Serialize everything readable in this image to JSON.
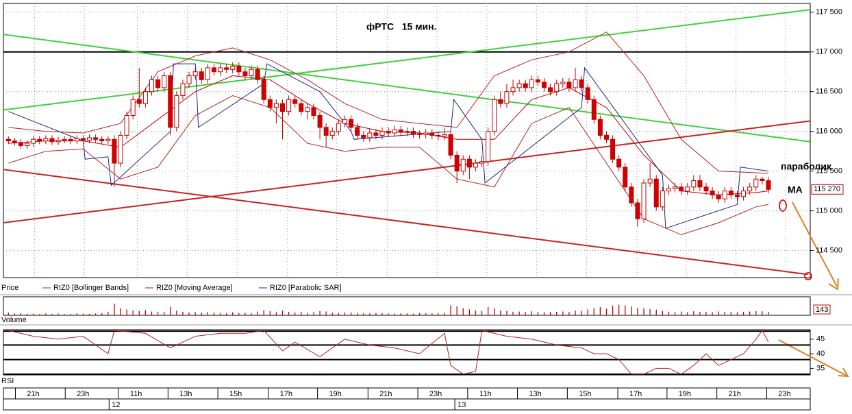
{
  "chart_data": {
    "type": "candlestick",
    "title": "фРТС   15 мин.",
    "annotations": [
      "параболик",
      "MA"
    ],
    "price_label": "Price",
    "xlim": [
      -0.8,
      128.6
    ],
    "ylim": [
      114160,
      117610
    ],
    "yticks": [
      {
        "value": 114500,
        "label": "114 500"
      },
      {
        "value": 115000,
        "label": "115 000"
      },
      {
        "value": 115500,
        "label": "115 500"
      },
      {
        "value": 116000,
        "label": "116 000"
      },
      {
        "value": 116500,
        "label": "116 500"
      },
      {
        "value": 117000,
        "label": "117 000"
      },
      {
        "value": 117500,
        "label": "117 500"
      }
    ],
    "grid": true,
    "up_color": "#ffffff",
    "down_color": "#d40000",
    "wick_color": "#c00000",
    "open": [
      115900,
      115880,
      115860,
      115820,
      115850,
      115900,
      115880,
      115910,
      115870,
      115890,
      115900,
      115880,
      115910,
      115890,
      115920,
      115900,
      115880,
      115900,
      115600,
      115950,
      116200,
      116400,
      116350,
      116500,
      116650,
      116550,
      116700,
      116050,
      116450,
      116600,
      116700,
      116750,
      116650,
      116800,
      116750,
      116800,
      116780,
      116820,
      116750,
      116700,
      116780,
      116650,
      116400,
      116300,
      116350,
      116250,
      116400,
      116350,
      116250,
      116300,
      116200,
      116050,
      115950,
      116000,
      116100,
      116150,
      116050,
      115950,
      115920,
      115980,
      115950,
      116000,
      115980,
      116020,
      115990,
      116000,
      115970,
      115960,
      115980,
      115950,
      115940,
      115960,
      115700,
      115500,
      115650,
      115550,
      115600,
      115620,
      116000,
      116400,
      116350,
      116500,
      116550,
      116600,
      116550,
      116650,
      116620,
      116550,
      116500,
      116600,
      116620,
      116550,
      116650,
      116550,
      116400,
      116150,
      115950,
      115900,
      115650,
      115550,
      115300,
      115100,
      114900,
      115350,
      115400,
      115050,
      115250,
      115280,
      115300,
      115250,
      115300,
      115380,
      115300,
      115250,
      115200,
      115150,
      115250,
      115200,
      115180,
      115250,
      115300,
      115400,
      115380
    ],
    "high": [
      115940,
      115920,
      115900,
      115890,
      115940,
      115940,
      115950,
      115950,
      115930,
      115940,
      115940,
      115950,
      115950,
      115960,
      115960,
      115940,
      115940,
      115950,
      116000,
      116250,
      116450,
      116800,
      116550,
      116700,
      116700,
      116750,
      116750,
      116500,
      116650,
      116750,
      116800,
      116800,
      116850,
      116850,
      116850,
      116850,
      116870,
      116870,
      116800,
      116830,
      116830,
      116700,
      116450,
      116400,
      116400,
      116450,
      116450,
      116400,
      116350,
      116350,
      116250,
      116100,
      116050,
      116150,
      116200,
      116200,
      116100,
      116000,
      116030,
      116030,
      116050,
      116050,
      116070,
      116070,
      116050,
      116050,
      116010,
      116030,
      116030,
      116000,
      116050,
      116010,
      115750,
      115700,
      115700,
      115650,
      115700,
      116050,
      116450,
      116500,
      116600,
      116650,
      116650,
      116650,
      116700,
      116700,
      116670,
      116600,
      116650,
      116670,
      116670,
      116800,
      116700,
      116600,
      116450,
      116200,
      116000,
      115950,
      115700,
      115600,
      115350,
      115150,
      115400,
      115600,
      115450,
      115300,
      115330,
      115350,
      115350,
      115350,
      115450,
      115450,
      115350,
      115300,
      115250,
      115300,
      115300,
      115250,
      115300,
      115350,
      115450,
      115430,
      115430
    ],
    "low": [
      115840,
      115820,
      115780,
      115780,
      115810,
      115840,
      115840,
      115830,
      115830,
      115850,
      115840,
      115840,
      115850,
      115850,
      115860,
      115840,
      115840,
      115300,
      115550,
      115900,
      116150,
      116300,
      116300,
      116450,
      116500,
      116500,
      115950,
      116000,
      116400,
      116550,
      116650,
      116600,
      116600,
      116700,
      116700,
      116730,
      116730,
      116700,
      116650,
      116650,
      116600,
      116350,
      116250,
      116100,
      115900,
      116200,
      116300,
      116200,
      116150,
      116150,
      115900,
      115800,
      115900,
      115950,
      116050,
      116000,
      115900,
      115870,
      115870,
      115900,
      115900,
      115930,
      115930,
      115940,
      115940,
      115920,
      115910,
      115910,
      115900,
      115890,
      115890,
      115650,
      115350,
      115450,
      115400,
      115500,
      115550,
      115570,
      115950,
      116300,
      116300,
      116450,
      116500,
      116500,
      116500,
      116570,
      116500,
      116450,
      116450,
      116550,
      116500,
      116500,
      116500,
      116350,
      116100,
      115900,
      115850,
      115600,
      115500,
      115250,
      115050,
      114800,
      114850,
      115300,
      115000,
      115000,
      115200,
      115230,
      115200,
      115200,
      115250,
      115250,
      115200,
      115150,
      115100,
      115100,
      115150,
      115130,
      115130,
      115200,
      115250,
      115330,
      115220
    ],
    "close": [
      115880,
      115860,
      115820,
      115850,
      115900,
      115880,
      115910,
      115870,
      115890,
      115900,
      115880,
      115910,
      115890,
      115920,
      115900,
      115880,
      115900,
      115600,
      115950,
      116200,
      116400,
      116350,
      116500,
      116650,
      116550,
      116700,
      116050,
      116450,
      116600,
      116700,
      116750,
      116650,
      116800,
      116750,
      116800,
      116780,
      116820,
      116750,
      116700,
      116780,
      116650,
      116400,
      116300,
      116350,
      116250,
      116400,
      116350,
      116250,
      116300,
      116200,
      116050,
      115950,
      116000,
      116100,
      116150,
      116050,
      115950,
      115920,
      115980,
      115950,
      116000,
      115980,
      116020,
      115990,
      116000,
      115970,
      115960,
      115980,
      115950,
      115940,
      115960,
      115700,
      115500,
      115650,
      115550,
      115600,
      115620,
      116000,
      116400,
      116350,
      116500,
      116550,
      116600,
      116550,
      116650,
      116620,
      116550,
      116500,
      116600,
      116620,
      116550,
      116650,
      116550,
      116400,
      116150,
      115950,
      115900,
      115650,
      115550,
      115300,
      115100,
      114900,
      115350,
      115400,
      115050,
      115250,
      115280,
      115300,
      115250,
      115300,
      115380,
      115300,
      115250,
      115200,
      115150,
      115250,
      115200,
      115180,
      115250,
      115300,
      115400,
      115380,
      115270
    ],
    "last_label": "115 270",
    "bands": {
      "name": "RIZ0 [Bollinger Bands]",
      "color": "#b52020",
      "x": [
        0,
        6,
        12,
        18,
        24,
        30,
        36,
        42,
        48,
        54,
        60,
        66,
        72,
        78,
        84,
        90,
        96,
        102,
        108,
        114,
        120,
        122
      ],
      "upper": [
        116050,
        116000,
        115980,
        116100,
        116750,
        116950,
        117050,
        116900,
        116650,
        116350,
        116150,
        116100,
        116050,
        116700,
        116900,
        117000,
        117250,
        116700,
        115900,
        115500,
        115480,
        115470
      ],
      "lower": [
        115600,
        115750,
        115780,
        115400,
        115550,
        116200,
        116450,
        116300,
        115850,
        115750,
        115800,
        115800,
        115400,
        115300,
        116100,
        116300,
        115600,
        114900,
        114700,
        114850,
        115050,
        115080
      ]
    },
    "ma": {
      "name": "RIZ0 [Moving Average]",
      "color": "#c00000",
      "x": [
        0,
        6,
        12,
        18,
        24,
        30,
        36,
        42,
        48,
        54,
        60,
        66,
        72,
        78,
        84,
        90,
        96,
        102,
        108,
        114,
        120,
        122
      ],
      "values": [
        115850,
        115880,
        115880,
        115800,
        116150,
        116500,
        116700,
        116650,
        116350,
        116100,
        116000,
        115980,
        115900,
        115900,
        116400,
        116550,
        116300,
        115700,
        115250,
        115200,
        115230,
        115250
      ]
    },
    "sar": {
      "name": "RIZ0 [Parabolic SAR]",
      "color": "#20208f",
      "x": [
        0,
        12,
        12.3,
        16,
        16.5,
        26,
        26.5,
        30,
        30.5,
        41,
        41.5,
        50,
        55,
        55.5,
        71,
        71.5,
        76,
        76.5,
        92,
        92.5,
        105,
        105.5,
        117,
        117.5,
        122
      ],
      "values": [
        116250,
        115880,
        115650,
        115680,
        115320,
        116000,
        116850,
        116850,
        116050,
        116600,
        116850,
        116500,
        116000,
        115900,
        116000,
        116400,
        115900,
        115350,
        116300,
        116800,
        115450,
        114780,
        115080,
        115550,
        115500
      ]
    },
    "trendlines": [
      {
        "color": "#000000",
        "x": [
          -0.8,
          128.6
        ],
        "values": [
          117000,
          117000
        ]
      },
      {
        "color": "#3fd13f",
        "x": [
          -0.8,
          128.6
        ],
        "values": [
          116270,
          117530
        ]
      },
      {
        "color": "#3fd13f",
        "x": [
          -0.8,
          128.6
        ],
        "values": [
          117220,
          115870
        ]
      },
      {
        "color": "#cc2020",
        "x": [
          -0.8,
          128.6
        ],
        "values": [
          114850,
          116130
        ]
      },
      {
        "color": "#cc2020",
        "x": [
          -0.8,
          128.3
        ],
        "values": [
          115520,
          114200
        ]
      }
    ],
    "volume": {
      "label": "Volume",
      "color": "#c00000",
      "ylim": [
        0,
        700
      ],
      "values": [
        120,
        80,
        90,
        60,
        70,
        50,
        80,
        60,
        70,
        50,
        60,
        90,
        70,
        60,
        80,
        100,
        150,
        500,
        300,
        250,
        200,
        180,
        220,
        160,
        150,
        140,
        350,
        200,
        150,
        120,
        130,
        110,
        140,
        120,
        100,
        90,
        130,
        100,
        110,
        90,
        160,
        220,
        180,
        130,
        200,
        150,
        120,
        140,
        110,
        130,
        180,
        160,
        110,
        100,
        120,
        130,
        110,
        90,
        80,
        100,
        90,
        80,
        70,
        90,
        80,
        70,
        100,
        90,
        80,
        90,
        110,
        420,
        380,
        300,
        250,
        200,
        180,
        350,
        300,
        200,
        180,
        150,
        160,
        140,
        170,
        150,
        130,
        140,
        150,
        160,
        140,
        200,
        180,
        250,
        300,
        350,
        280,
        400,
        450,
        420,
        380,
        320,
        300,
        260,
        240,
        180,
        150,
        140,
        160,
        130,
        170,
        150,
        140,
        130,
        160,
        150,
        140,
        130,
        150,
        160,
        180,
        170,
        143
      ]
    },
    "rsi": {
      "label": "RSI",
      "color": "#b52020",
      "ylim": [
        32.75,
        48.25
      ],
      "yticks": [
        35,
        40,
        45
      ],
      "levels": [
        47.75,
        43,
        38,
        33
      ],
      "x": [
        0,
        4,
        8,
        12,
        16,
        17,
        22,
        26,
        30,
        34,
        38,
        41,
        44,
        46,
        50,
        54,
        58,
        62,
        66,
        70,
        71,
        73,
        75,
        76,
        80,
        84,
        88,
        92,
        94,
        96,
        98,
        100,
        102,
        104,
        106,
        108,
        110,
        112,
        114,
        116,
        118,
        120,
        121,
        122
      ],
      "values": [
        48,
        46,
        45,
        46,
        40,
        48,
        47,
        42,
        46,
        47,
        47,
        48,
        41,
        44,
        39,
        45,
        43,
        42,
        40,
        47,
        36,
        33,
        34,
        48,
        46,
        45,
        43,
        42,
        40,
        40,
        38,
        33,
        33,
        35,
        35,
        33,
        36,
        40,
        36,
        38,
        40,
        45,
        48,
        44
      ]
    },
    "xticks": [
      {
        "value": 4.2,
        "label": "21h"
      },
      {
        "value": 12.2,
        "label": "23h"
      },
      {
        "value": 20.7,
        "label": "11h"
      },
      {
        "value": 28.7,
        "label": "13h"
      },
      {
        "value": 36.7,
        "label": "15h"
      },
      {
        "value": 44.8,
        "label": "17h"
      },
      {
        "value": 52.7,
        "label": "19h"
      },
      {
        "value": 60.8,
        "label": "21h"
      },
      {
        "value": 68.8,
        "label": "23h"
      },
      {
        "value": 76.8,
        "label": "11h"
      },
      {
        "value": 84.8,
        "label": "13h"
      },
      {
        "value": 92.8,
        "label": "15h"
      },
      {
        "value": 100.9,
        "label": "17h"
      },
      {
        "value": 108.8,
        "label": "19h"
      },
      {
        "value": 116.8,
        "label": "21h"
      },
      {
        "value": 124.8,
        "label": "23h"
      }
    ],
    "date_ticks": [
      {
        "value": 16.6,
        "label": "12"
      },
      {
        "value": 72.1,
        "label": "13"
      }
    ]
  }
}
